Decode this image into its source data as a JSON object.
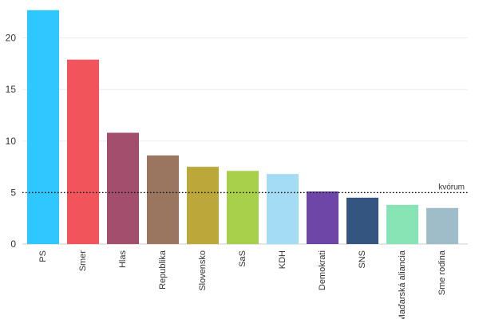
{
  "chart_data": {
    "type": "bar",
    "categories": [
      "PS",
      "Smer",
      "Hlas",
      "Republika",
      "Slovensko",
      "SaS",
      "KDH",
      "Demokrati",
      "SNS",
      "Maďarská aliancia",
      "Sme rodina"
    ],
    "values": [
      22.7,
      17.9,
      10.8,
      8.6,
      7.5,
      7.1,
      6.8,
      5.1,
      4.5,
      3.8,
      3.5
    ],
    "colors": [
      "#2ec7ff",
      "#f2545b",
      "#a44e6e",
      "#9a7560",
      "#bca83a",
      "#a8d04a",
      "#a4dcf5",
      "#6e46a8",
      "#34557f",
      "#88e4b4",
      "#9fbdc8"
    ],
    "y_ticks": [
      0,
      5,
      10,
      15,
      20
    ],
    "y_tick_labels": [
      "0",
      "5",
      "10",
      "15",
      "20"
    ],
    "ylim": [
      0,
      23.3
    ],
    "grid": true,
    "title": "",
    "xlabel": "",
    "ylabel": "",
    "threshold": {
      "value": 5,
      "label": "kvórum"
    }
  }
}
